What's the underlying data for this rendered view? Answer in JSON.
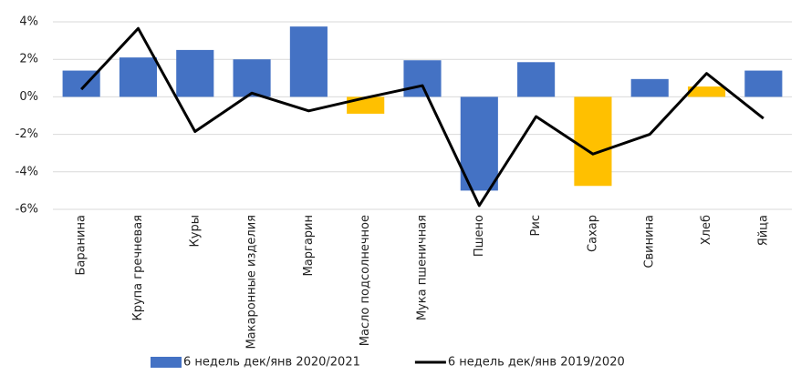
{
  "chart_data": {
    "type": "bar-line",
    "categories": [
      "Баранина",
      "Крупа гречневая",
      "Куры",
      "Макаронные изделия",
      "Маргарин",
      "Масло подсолнечное",
      "Мука пшеничная",
      "Пшено",
      "Рис",
      "Сахар",
      "Свинина",
      "Хлеб",
      "Яйца"
    ],
    "series": [
      {
        "name": "6 недель дек/янв 2020/2021",
        "type": "bar",
        "color": "#4472c4",
        "colors": [
          "#4472c4",
          "#4472c4",
          "#4472c4",
          "#4472c4",
          "#4472c4",
          "#ffc000",
          "#4472c4",
          "#4472c4",
          "#4472c4",
          "#ffc000",
          "#4472c4",
          "#ffc000",
          "#4472c4"
        ],
        "values": [
          1.4,
          2.1,
          2.5,
          2.0,
          3.75,
          -0.9,
          1.95,
          -5.0,
          1.85,
          -4.75,
          0.95,
          0.55,
          1.4
        ]
      },
      {
        "name": "6 недель дек/янв 2019/2020",
        "type": "line",
        "color": "#000000",
        "values": [
          0.4,
          3.65,
          -1.85,
          0.2,
          -0.75,
          -0.05,
          0.6,
          -5.8,
          -1.05,
          -3.05,
          -2.0,
          1.25,
          -1.15
        ]
      }
    ],
    "ylim": [
      -6,
      4
    ],
    "yticks": [
      {
        "value": -6,
        "label": "-6%"
      },
      {
        "value": -4,
        "label": "-4%"
      },
      {
        "value": -2,
        "label": "-2%"
      },
      {
        "value": 0,
        "label": "0%"
      },
      {
        "value": 2,
        "label": "2%"
      },
      {
        "value": 4,
        "label": "4%"
      }
    ],
    "grid": true
  }
}
